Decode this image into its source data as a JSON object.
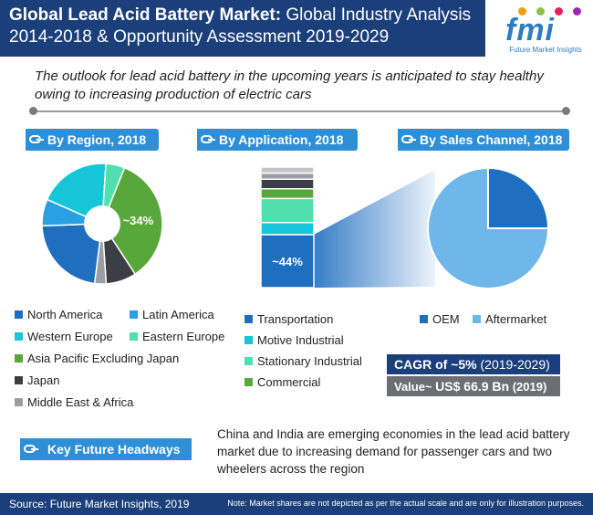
{
  "header": {
    "title_bold": "Global Lead Acid Battery Market:",
    "title_rest": " Global Industry Analysis 2014-2018 & Opportunity Assessment 2019-2029"
  },
  "logo": {
    "text": "fmi",
    "subtitle": "Future Market Insights"
  },
  "outlook": "The outlook for lead acid battery in the upcoming years is anticipated to stay healthy owing to increasing production of electric cars",
  "sections": {
    "region": "By Region, 2018",
    "application": "By Application, 2018",
    "channel": "By Sales Channel, 2018"
  },
  "colors": {
    "north_america": "#1e6fc0",
    "latin_america": "#2aa0e4",
    "western_europe": "#16c6d8",
    "eastern_europe": "#4fe0ae",
    "apej": "#58a73a",
    "japan": "#3b3f45",
    "mea": "#9a9ea4",
    "transportation": "#1e6fc0",
    "motive_industrial": "#16c6d8",
    "stationary_industrial": "#4fe0ae",
    "commercial": "#58a73a",
    "oem": "#1e6fc0",
    "aftermarket": "#6fb7e8",
    "header_bg": "#1b3f7a",
    "pill_bg": "#2e8fd6"
  },
  "chart_data": [
    {
      "type": "pie",
      "title": "By Region, 2018",
      "donut": true,
      "labels": [
        "North America",
        "Latin America",
        "Western Europe",
        "Eastern Europe",
        "Asia Pacific Excluding Japan",
        "Japan",
        "Middle East & Africa"
      ],
      "values": [
        22,
        7,
        19,
        5,
        34,
        8,
        3
      ],
      "data_labels": [
        "",
        "",
        "",
        "",
        "~34%",
        "",
        ""
      ]
    },
    {
      "type": "bar",
      "title": "By Application, 2018",
      "stacked": true,
      "categories": [
        "2018"
      ],
      "series": [
        {
          "name": "Transportation",
          "values": [
            44
          ]
        },
        {
          "name": "Motive Industrial",
          "values": [
            10
          ]
        },
        {
          "name": "Stationary Industrial",
          "values": [
            20
          ]
        },
        {
          "name": "Commercial",
          "values": [
            8
          ]
        },
        {
          "name": "",
          "values": [
            8
          ]
        },
        {
          "name": "",
          "values": [
            5
          ]
        },
        {
          "name": "",
          "values": [
            5
          ]
        }
      ],
      "data_labels": [
        "~44%"
      ]
    },
    {
      "type": "pie",
      "title": "By Sales Channel, 2018",
      "labels": [
        "OEM",
        "Aftermarket"
      ],
      "values": [
        25,
        75
      ]
    }
  ],
  "cagr": {
    "label": "CAGR of ~5%",
    "period": " (2019-2029)"
  },
  "value": {
    "prefix": "Value~ ",
    "amount": "US$ 66.9 Bn",
    "year": " (2019)"
  },
  "headways": {
    "label": "Key Future Headways",
    "text": "China and India are emerging economies in the lead acid battery market due to increasing demand for passenger cars and two wheelers across the region"
  },
  "footer": {
    "source": "Source: Future Market Insights, 2019",
    "note": "Note: Market shares are not depicted as per the actual scale and are only for illustration purposes."
  }
}
